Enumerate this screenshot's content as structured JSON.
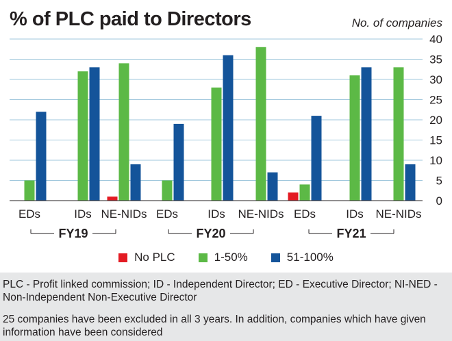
{
  "header": {
    "title": "% of PLC paid to Directors",
    "unit_label": "No. of companies"
  },
  "chart_data": {
    "type": "bar",
    "title": "% of PLC paid to Directors",
    "ylabel": "No. of companies",
    "ylim": [
      0,
      40
    ],
    "yticks": [
      0,
      5,
      10,
      15,
      20,
      25,
      30,
      35,
      40
    ],
    "grid": true,
    "legend_position": "bottom",
    "groups": [
      "FY19",
      "FY20",
      "FY21"
    ],
    "categories": [
      "EDs",
      "IDs",
      "NE-NIDs"
    ],
    "series": [
      {
        "name": "No PLC",
        "color": "#e31b23",
        "values": [
          [
            0,
            0,
            1
          ],
          [
            0,
            0,
            0
          ],
          [
            2,
            0,
            0
          ]
        ]
      },
      {
        "name": "1-50%",
        "color": "#5cb946",
        "values": [
          [
            5,
            32,
            34
          ],
          [
            5,
            28,
            38
          ],
          [
            4,
            31,
            33
          ]
        ]
      },
      {
        "name": "51-100%",
        "color": "#14549a",
        "values": [
          [
            22,
            33,
            9
          ],
          [
            19,
            36,
            7
          ],
          [
            21,
            33,
            9
          ]
        ]
      }
    ]
  },
  "notes": {
    "line1": "PLC - Profit linked commission; ID - Independent Director; ED - Executive Director; NI-NED - Non-Independent Non-Executive Director",
    "line2": "25 companies have been excluded in all 3 years. In addition, companies which have given information have been considered"
  }
}
